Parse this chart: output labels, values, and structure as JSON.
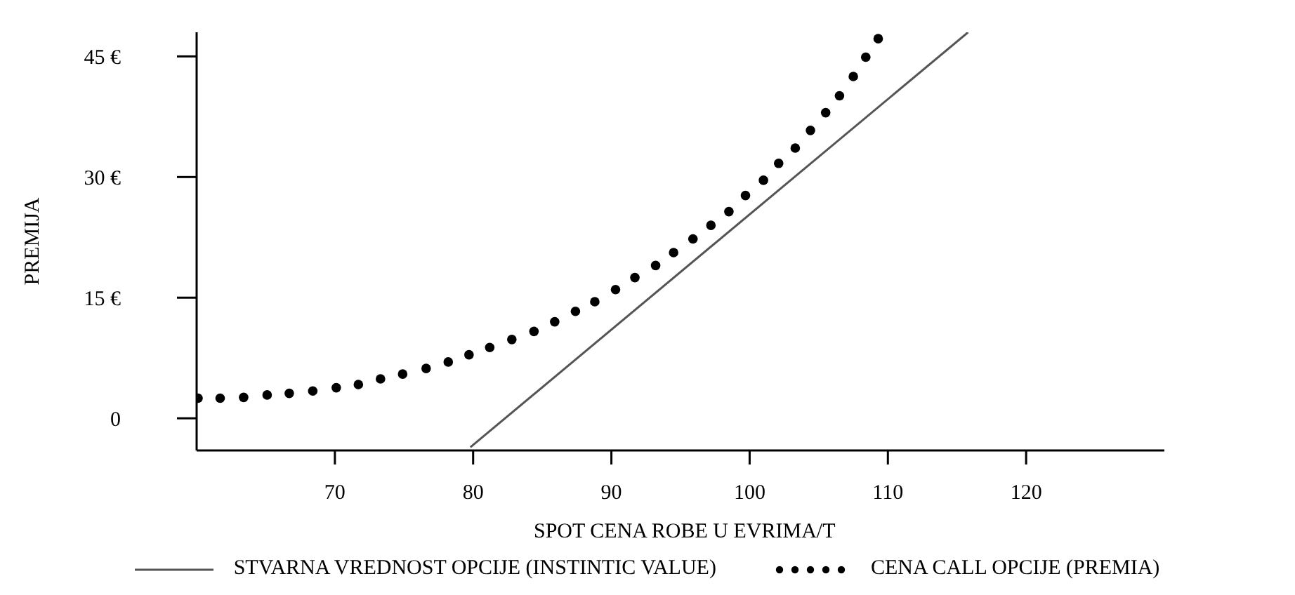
{
  "chart_data": {
    "type": "line",
    "xlabel": "SPOT CENA ROBE U EVRIMA/T",
    "ylabel": "PREMIJA",
    "xlim": [
      60,
      130
    ],
    "xticks": [
      70,
      80,
      90,
      100,
      110,
      120
    ],
    "ylim": [
      -4,
      48
    ],
    "yticks": [
      {
        "value": 0,
        "label": "0"
      },
      {
        "value": 15,
        "label": "15 €"
      },
      {
        "value": 30,
        "label": "30 €"
      },
      {
        "value": 45,
        "label": "45 €"
      }
    ],
    "grid": false,
    "legend": "bottom",
    "series": [
      {
        "name": "STVARNA VREDNOST OPCIJE (INSTINTIC VALUE)",
        "line_style": "solid",
        "marker": "none",
        "color": "#555555",
        "x": [
          79.8,
          115.8
        ],
        "values": [
          -3.6,
          48
        ]
      },
      {
        "name": "CENA CALL OPCIJE (PREMIA)",
        "type": "scatter",
        "marker": "circle",
        "color": "#000000",
        "x": [
          60.1,
          61.7,
          63.4,
          65.1,
          66.7,
          68.4,
          70.1,
          71.7,
          73.3,
          74.9,
          76.6,
          78.2,
          79.7,
          81.2,
          82.8,
          84.4,
          85.9,
          87.4,
          88.8,
          90.3,
          91.7,
          93.2,
          94.5,
          95.9,
          97.2,
          98.5,
          99.7,
          101.0,
          102.1,
          103.3,
          104.4,
          105.5,
          106.5,
          107.5,
          108.4,
          109.3
        ],
        "values": [
          2.5,
          2.5,
          2.6,
          2.9,
          3.1,
          3.4,
          3.8,
          4.2,
          4.9,
          5.5,
          6.2,
          7.0,
          7.9,
          8.8,
          9.8,
          10.8,
          12.0,
          13.3,
          14.5,
          16.0,
          17.5,
          19.0,
          20.6,
          22.3,
          24.0,
          25.7,
          27.7,
          29.6,
          31.7,
          33.6,
          35.8,
          38.0,
          40.1,
          42.5,
          44.9,
          47.2
        ]
      }
    ]
  }
}
